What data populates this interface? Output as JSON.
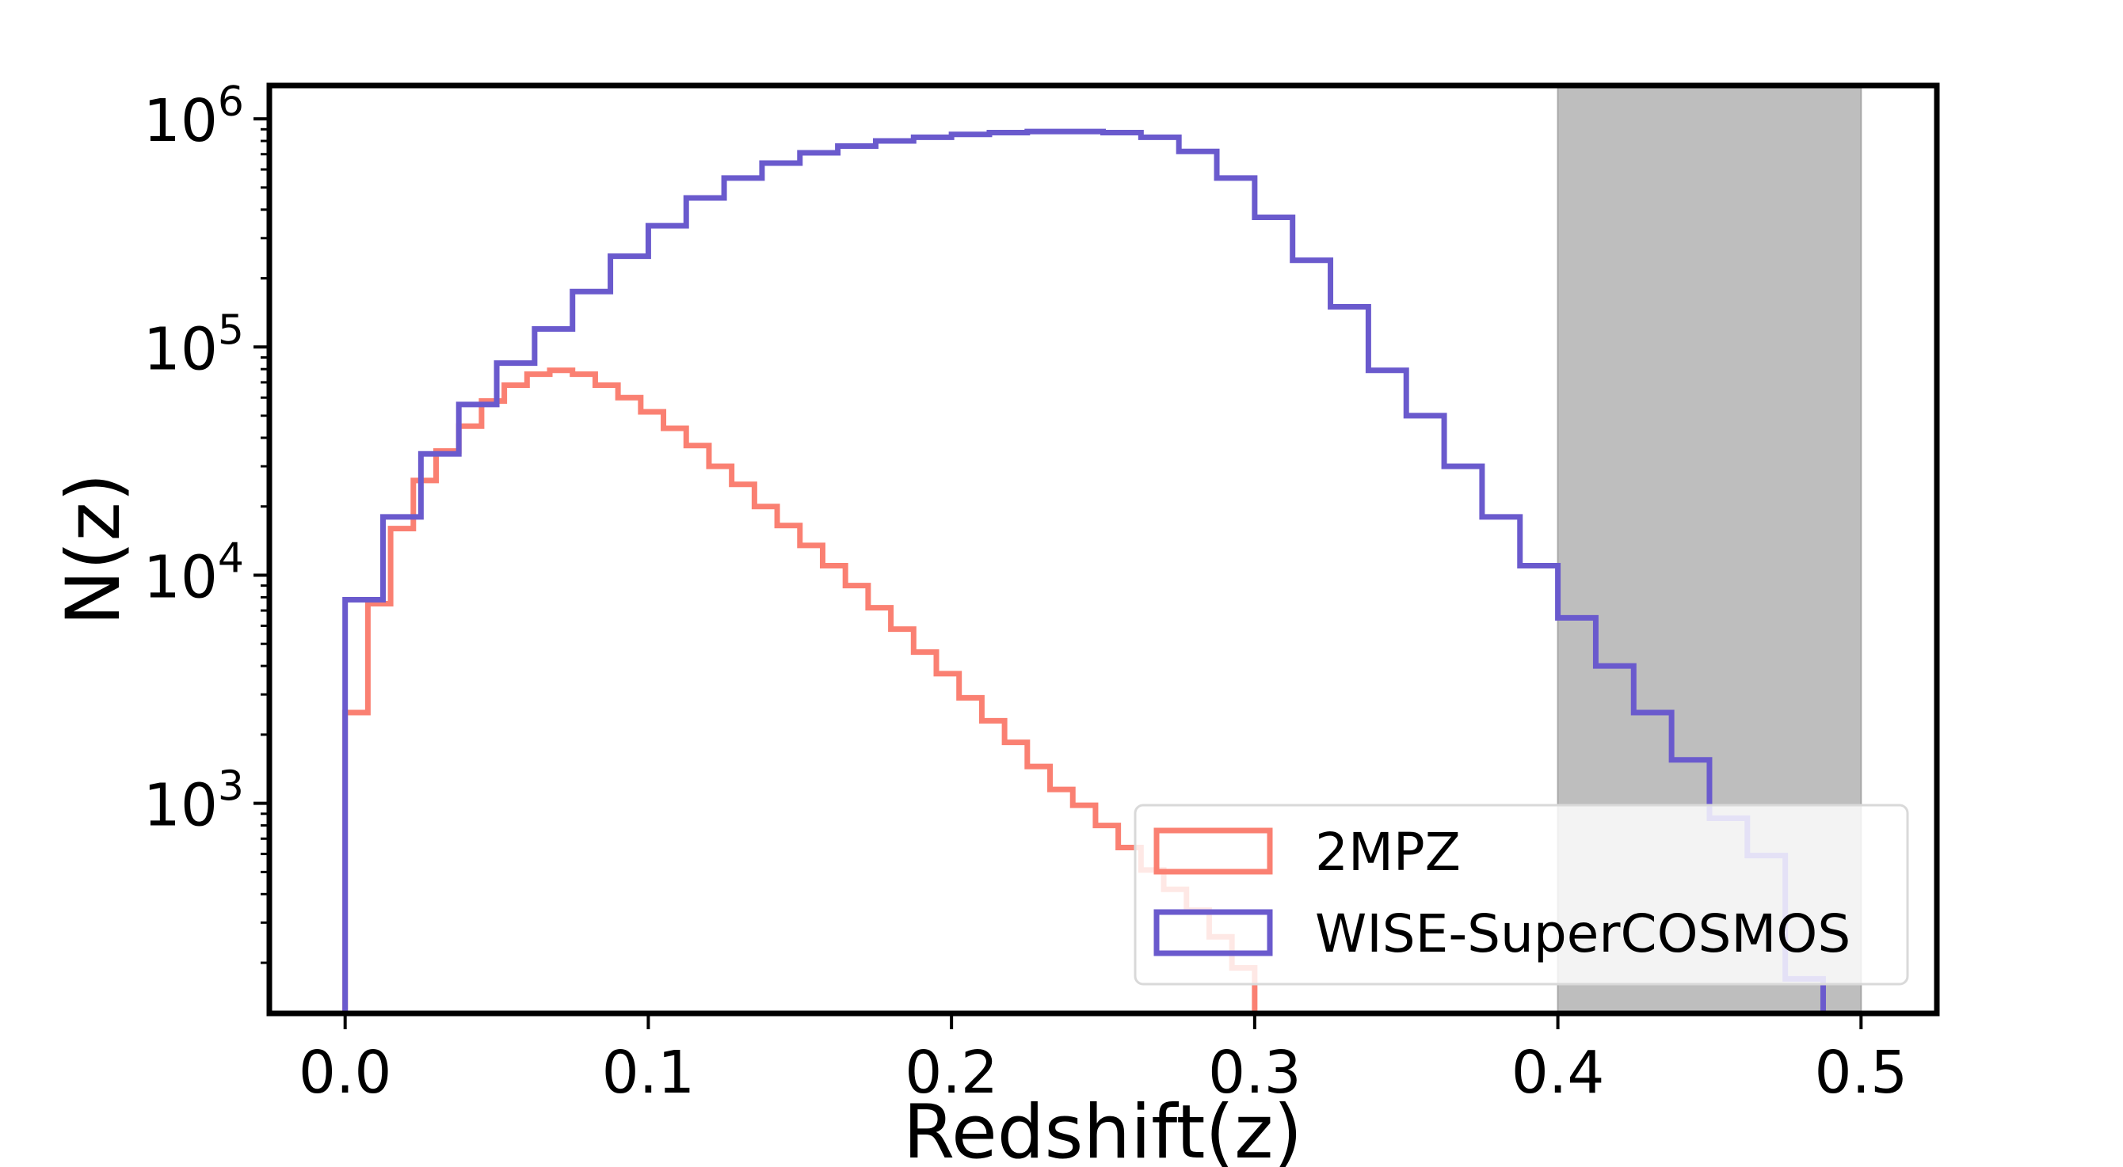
{
  "chart_data": {
    "type": "histogram",
    "title": "",
    "xlabel": "Redshift(z)",
    "ylabel": "N(z)",
    "yscale": "log",
    "xlim": [
      -0.025,
      0.525
    ],
    "ylim": [
      120,
      1400000
    ],
    "xticks": [
      0.0,
      0.1,
      0.2,
      0.3,
      0.4,
      0.5
    ],
    "xtick_labels": [
      "0.0",
      "0.1",
      "0.2",
      "0.3",
      "0.4",
      "0.5"
    ],
    "yticks": [
      {
        "value": 1000,
        "base": "10",
        "exp": "3"
      },
      {
        "value": 10000,
        "base": "10",
        "exp": "4"
      },
      {
        "value": 100000,
        "base": "10",
        "exp": "5"
      },
      {
        "value": 1000000,
        "base": "10",
        "exp": "6"
      }
    ],
    "shaded_region": {
      "x": [
        0.4,
        0.5
      ],
      "color": "#bebebe"
    },
    "legend": {
      "position": "lower right"
    },
    "series": [
      {
        "name": "2MPZ",
        "color": "#fa8072",
        "bin_edges": [
          0.0,
          0.0075,
          0.015,
          0.0225,
          0.03,
          0.0375,
          0.045,
          0.0525,
          0.06,
          0.0675,
          0.075,
          0.0825,
          0.09,
          0.0975,
          0.105,
          0.1125,
          0.12,
          0.1275,
          0.135,
          0.1425,
          0.15,
          0.1575,
          0.165,
          0.1725,
          0.18,
          0.1875,
          0.195,
          0.2025,
          0.21,
          0.2175,
          0.225,
          0.2325,
          0.24,
          0.2475,
          0.255,
          0.2625,
          0.27,
          0.2775,
          0.285,
          0.2925,
          0.3
        ],
        "counts": [
          2500,
          7500,
          16000,
          26000,
          35000,
          45000,
          58000,
          68000,
          76000,
          79000,
          76000,
          68000,
          60000,
          52000,
          44000,
          37000,
          30000,
          25000,
          20000,
          16500,
          13500,
          11000,
          9000,
          7200,
          5800,
          4600,
          3700,
          2900,
          2300,
          1850,
          1450,
          1150,
          980,
          800,
          640,
          510,
          420,
          340,
          260,
          190
        ]
      },
      {
        "name": "WISE-SuperCOSMOS",
        "color": "#6a5acd",
        "bin_edges": [
          0.0,
          0.0125,
          0.025,
          0.0375,
          0.05,
          0.0625,
          0.075,
          0.0875,
          0.1,
          0.1125,
          0.125,
          0.1375,
          0.15,
          0.1625,
          0.175,
          0.1875,
          0.2,
          0.2125,
          0.225,
          0.2375,
          0.25,
          0.2625,
          0.275,
          0.2875,
          0.3,
          0.3125,
          0.325,
          0.3375,
          0.35,
          0.3625,
          0.375,
          0.3875,
          0.4,
          0.4125,
          0.425,
          0.4375,
          0.45,
          0.4625,
          0.475,
          0.4875,
          0.5
        ],
        "counts": [
          7800,
          18000,
          34000,
          56000,
          85000,
          120000,
          175000,
          250000,
          340000,
          450000,
          550000,
          640000,
          710000,
          760000,
          800000,
          830000,
          855000,
          870000,
          880000,
          880000,
          870000,
          830000,
          720000,
          550000,
          370000,
          240000,
          150000,
          79000,
          50000,
          30000,
          18000,
          11000,
          6500,
          4000,
          2500,
          1550,
          860,
          590,
          170,
          120
        ]
      }
    ]
  }
}
